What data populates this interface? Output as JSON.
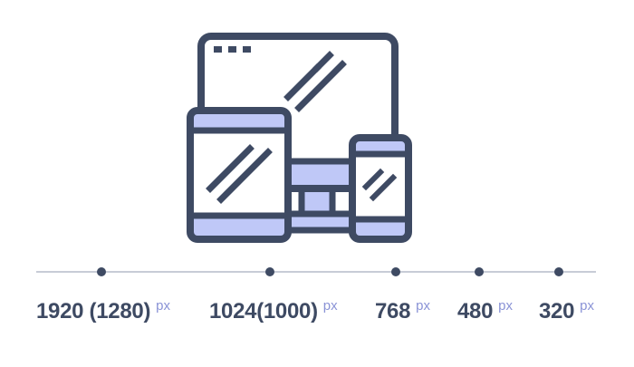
{
  "colors": {
    "outline": "#3e4a63",
    "fill": "#bfc8f7",
    "timeline": "#c8ccd6",
    "dot": "#3e4a63",
    "text": "#3e4a63",
    "unit": "#8a93d6",
    "background": "#ffffff"
  },
  "icon": {
    "name": "responsive-devices-icon",
    "parts": [
      "monitor-icon",
      "tablet-icon",
      "phone-icon"
    ]
  },
  "breakpoints": [
    {
      "value": "1920 (1280)",
      "unit": "px"
    },
    {
      "value": "1024(1000)",
      "unit": "px"
    },
    {
      "value": "768",
      "unit": "px"
    },
    {
      "value": "480",
      "unit": "px"
    },
    {
      "value": "320",
      "unit": "px"
    }
  ]
}
